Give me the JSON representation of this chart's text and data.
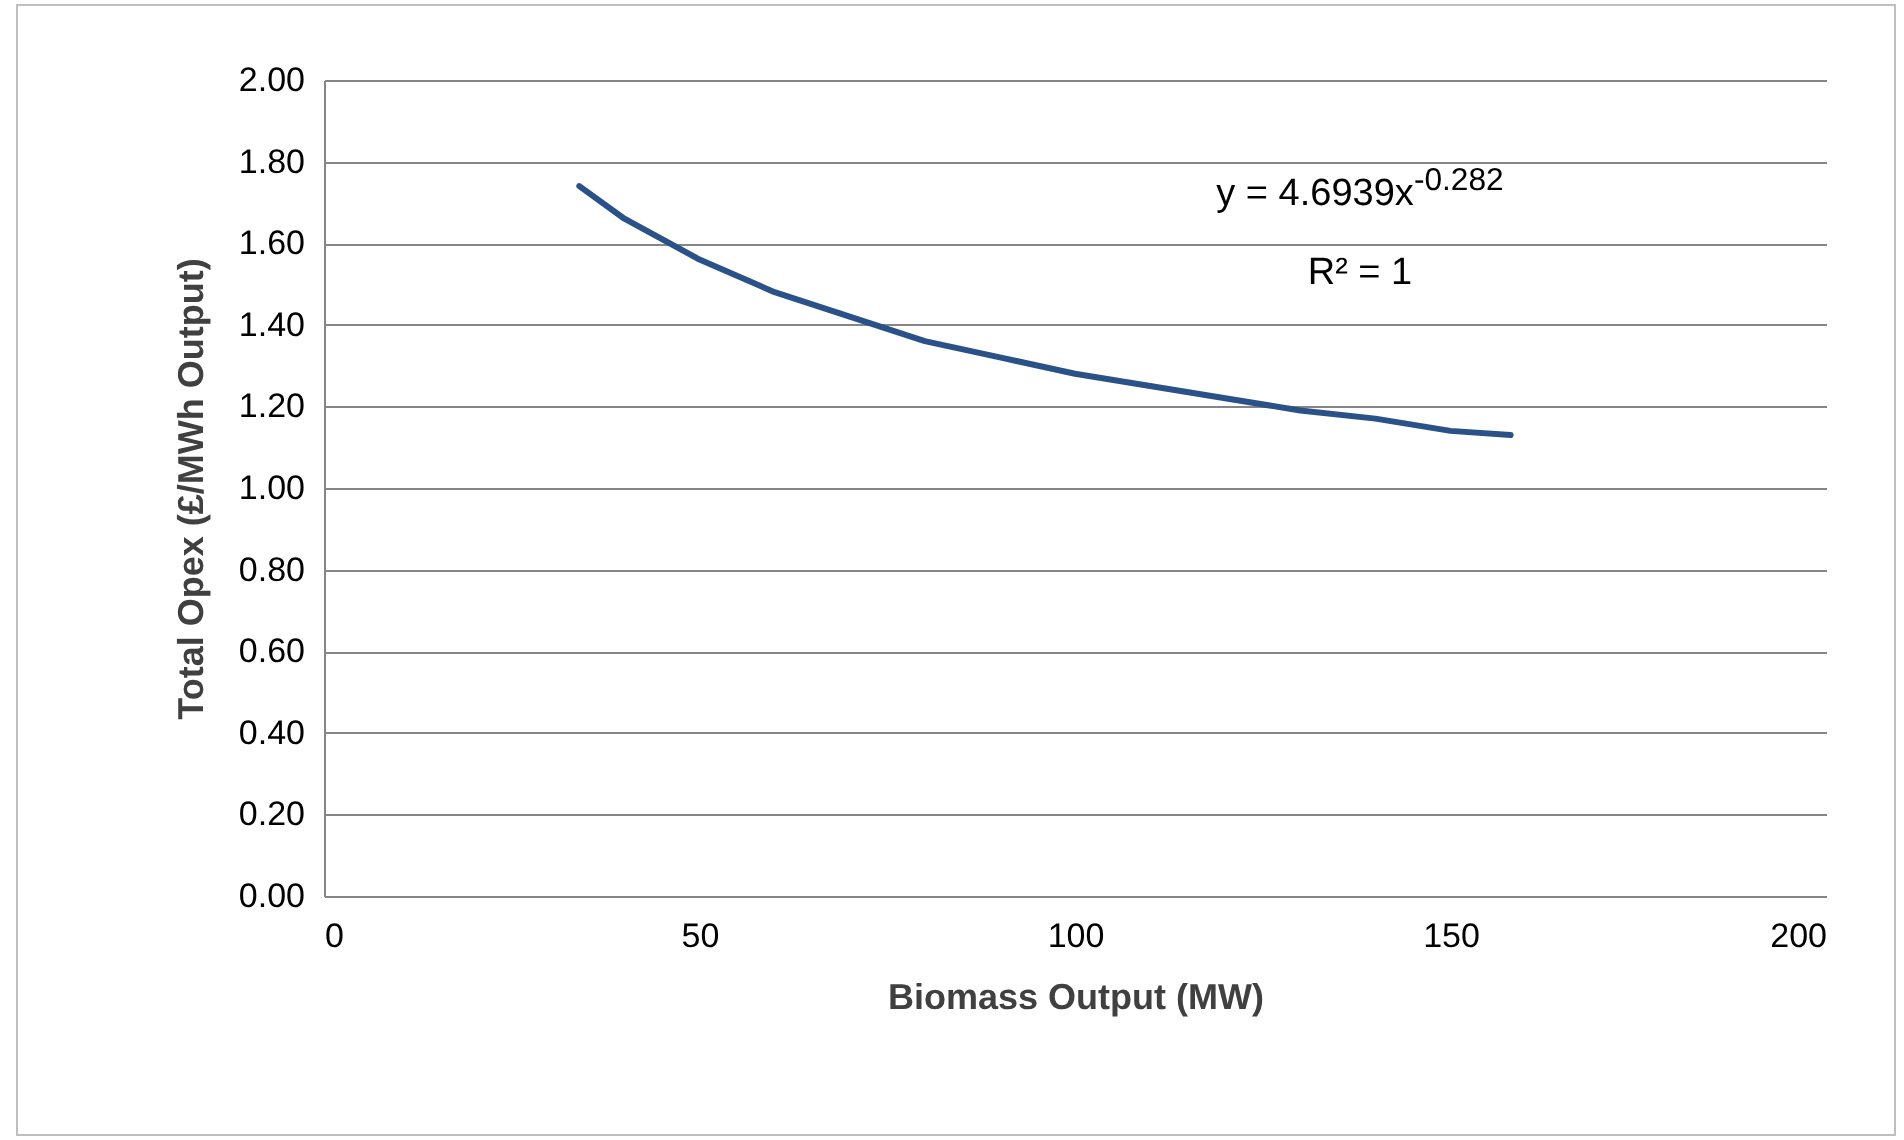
{
  "chart_data": {
    "type": "line",
    "xlabel": "Biomass Output (MW)",
    "ylabel": "Total Opex (£/MWh Output)",
    "x": [
      34,
      40,
      50,
      60,
      70,
      80,
      90,
      100,
      110,
      120,
      130,
      140,
      150,
      158
    ],
    "series": [
      {
        "color": "#2a5288",
        "values": [
          1.74,
          1.66,
          1.56,
          1.48,
          1.42,
          1.36,
          1.32,
          1.28,
          1.25,
          1.22,
          1.19,
          1.17,
          1.14,
          1.13
        ]
      }
    ],
    "xlim": [
      0,
      200
    ],
    "xticks": [
      0,
      50,
      100,
      150,
      200
    ],
    "ylim": [
      0,
      2
    ],
    "yticks": [
      {
        "value": 0,
        "label": "0.00"
      },
      {
        "value": 0.2,
        "label": "0.20"
      },
      {
        "value": 0.4,
        "label": "0.40"
      },
      {
        "value": 0.6,
        "label": "0.60"
      },
      {
        "value": 0.8,
        "label": "0.80"
      },
      {
        "value": 1,
        "label": "1.00"
      },
      {
        "value": 1.2,
        "label": "1.20"
      },
      {
        "value": 1.4,
        "label": "1.40"
      },
      {
        "value": 1.6,
        "label": "1.60"
      },
      {
        "value": 1.8,
        "label": "1.80"
      },
      {
        "value": 2,
        "label": "2.00"
      }
    ],
    "grid": "y",
    "marker": "none",
    "line_style": "solid",
    "annotations": [
      "y = 4.6939x$^{-0.282}$",
      "R² = 1"
    ]
  }
}
